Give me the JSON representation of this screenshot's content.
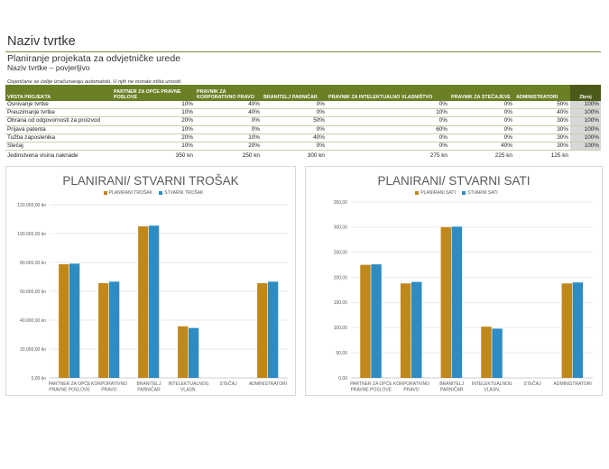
{
  "header": {
    "company": "Naziv tvrtke",
    "subtitle": "Planiranje projekata za odvjetničke urede",
    "confidential": "Naziv tvrtke – povjerljivo",
    "note": "Osjenčane se ćelije izračunavaju automatski. U njih ne morate ništa unositi."
  },
  "table": {
    "headers": [
      "VRSTA PROJEKTA",
      "PARTNER ZA OPĆE PRAVNE POSLOVE",
      "PRAVNIK ZA KORPORATIVNO PRAVO",
      "BRANITELJ PARNIČAR",
      "PRAVNIK ZA INTELEKTUALNO VLASNIŠTVO",
      "PRAVNIK ZA STEČAJEVE",
      "ADMINISTRATORI",
      "Zbroj"
    ],
    "rows": [
      [
        "Osnivanje tvrtke",
        "10%",
        "40%",
        "0%",
        "0%",
        "0%",
        "50%",
        "100%"
      ],
      [
        "Preuzimanje tvrtke",
        "10%",
        "40%",
        "0%",
        "10%",
        "0%",
        "40%",
        "100%"
      ],
      [
        "Obrana od odgovornosti za proizvod",
        "20%",
        "0%",
        "50%",
        "0%",
        "0%",
        "30%",
        "100%"
      ],
      [
        "Prijava patenta",
        "10%",
        "0%",
        "0%",
        "60%",
        "0%",
        "30%",
        "100%"
      ],
      [
        "Tužba zaposlenika",
        "20%",
        "10%",
        "40%",
        "0%",
        "0%",
        "30%",
        "100%"
      ],
      [
        "Stečaj",
        "10%",
        "20%",
        "0%",
        "0%",
        "40%",
        "30%",
        "100%"
      ]
    ],
    "total_label": "Jedinstvena visina naknade",
    "totals": [
      "350 kn",
      "250 kn",
      "300 kn",
      "275 kn",
      "225 kn",
      "125 kn"
    ]
  },
  "charts": {
    "colors": {
      "planned": "#c0871a",
      "actual": "#2e8cc2"
    },
    "cost": {
      "title": "PLANIRANI/ STVARNI TROŠAK",
      "legend_planned": "PLANIRANI TROŠAK",
      "legend_actual": "STVARNI TROŠAK"
    },
    "hours": {
      "title": "PLANIRANI/ STVARNI SATI",
      "legend_planned": "PLANIRANI SATI",
      "legend_actual": "STVARNI SATI"
    }
  },
  "chart_data": [
    {
      "type": "bar",
      "title": "PLANIRANI/ STVARNI TROŠAK",
      "categories": [
        [
          "PARTNER ZA OPĆE",
          "PRAVNE POSLOVE"
        ],
        [
          "KORPORATIVNO",
          "PRAVO"
        ],
        [
          "BRANITELJ",
          "PARNIČAR"
        ],
        [
          "INTELEKTUALNOG",
          "VLASN."
        ],
        [
          "STEČAJ"
        ],
        [
          "ADMINISTRATORI"
        ]
      ],
      "series": [
        {
          "name": "PLANIRANI TROŠAK",
          "values": [
            78750,
            65625,
            105000,
            35750,
            0,
            65625
          ]
        },
        {
          "name": "STVARNI TROŠAK",
          "values": [
            79200,
            66700,
            105500,
            34600,
            0,
            66700
          ]
        }
      ],
      "ylim": [
        0,
        120000
      ],
      "yticks": [
        "0,00 kn",
        "20.000,00 kn",
        "40.000,00 kn",
        "60.000,00 kn",
        "80.000,00 kn",
        "100.000,00 kn",
        "120.000,00 kn"
      ]
    },
    {
      "type": "bar",
      "title": "PLANIRANI/ STVARNI SATI",
      "categories": [
        [
          "PARTNER ZA OPĆE",
          "PRAVNE POSLOVE"
        ],
        [
          "KORPORATIVNO",
          "PRAVO"
        ],
        [
          "BRANITELJ",
          "PARNIČAR"
        ],
        [
          "INTELEKTUALNOG",
          "VLASN."
        ],
        [
          "STEČAJ"
        ],
        [
          "ADMINISTRATORI"
        ]
      ],
      "series": [
        {
          "name": "PLANIRANI SATI",
          "values": [
            225,
            188,
            300,
            102,
            0,
            188
          ]
        },
        {
          "name": "STVARNI SATI",
          "values": [
            226,
            191,
            301,
            98,
            0,
            190
          ]
        }
      ],
      "ylim": [
        0,
        350
      ],
      "yticks": [
        "0,00",
        "50,00",
        "100,00",
        "150,00",
        "200,00",
        "250,00",
        "300,00",
        "350,00"
      ]
    }
  ]
}
